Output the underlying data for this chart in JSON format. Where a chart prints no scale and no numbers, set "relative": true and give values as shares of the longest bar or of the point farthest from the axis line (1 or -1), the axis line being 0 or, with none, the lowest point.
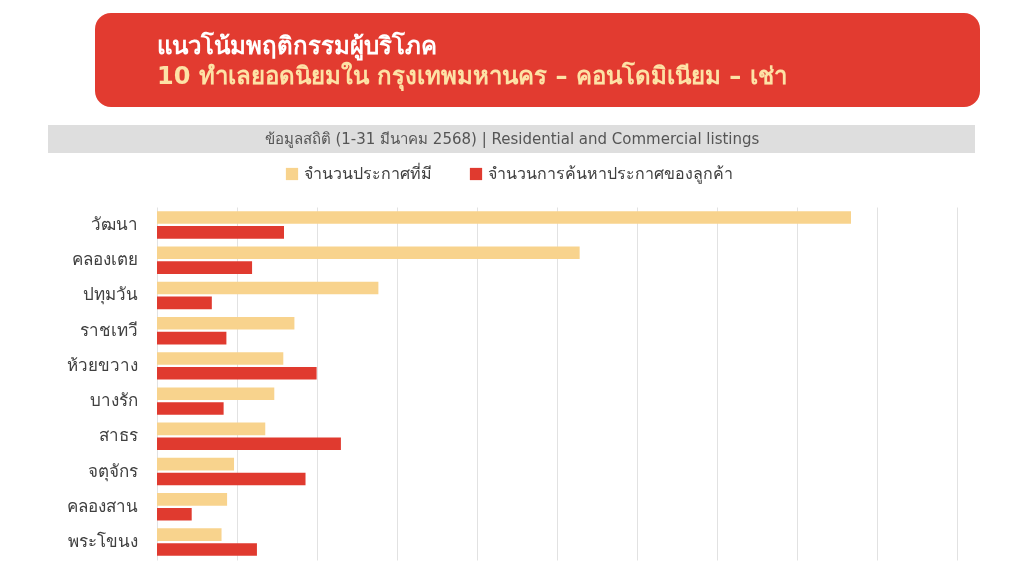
{
  "chart_data": {
    "type": "bar",
    "orientation": "horizontal",
    "relative": true,
    "title": "แนวโน้มพฤติกรรมผู้บริโภค",
    "subtitle": "10 ทำเลยอดนิยมใน กรุงเทพมหานคร – คอนโดมิเนียม – เช่า",
    "annotations": [
      "ข้อมูลสถิติ (1-31 มีนาคม 2568) | Residential and Commercial listings"
    ],
    "categories": [
      "วัฒนา",
      "คลองเตย",
      "ปทุมวัน",
      "ราชเทวี",
      "ห้วยขวาง",
      "บางรัก",
      "สาธร",
      "จตุจักร",
      "คลองสาน",
      "พระโขนง"
    ],
    "series": [
      {
        "name": "จำนวนประกาศที่มี",
        "color": "#f8d38d",
        "values": [
          1,
          0.609,
          0.319,
          0.198,
          0.182,
          0.169,
          0.156,
          0.111,
          0.101,
          0.093
        ]
      },
      {
        "name": "จำนวนการค้นหาประกาศของลูกค้า",
        "color": "#e03a2f",
        "values": [
          0.183,
          0.137,
          0.079,
          0.1,
          0.23,
          0.096,
          0.265,
          0.214,
          0.05,
          0.144
        ]
      }
    ],
    "legend": "top",
    "grid": "x"
  }
}
